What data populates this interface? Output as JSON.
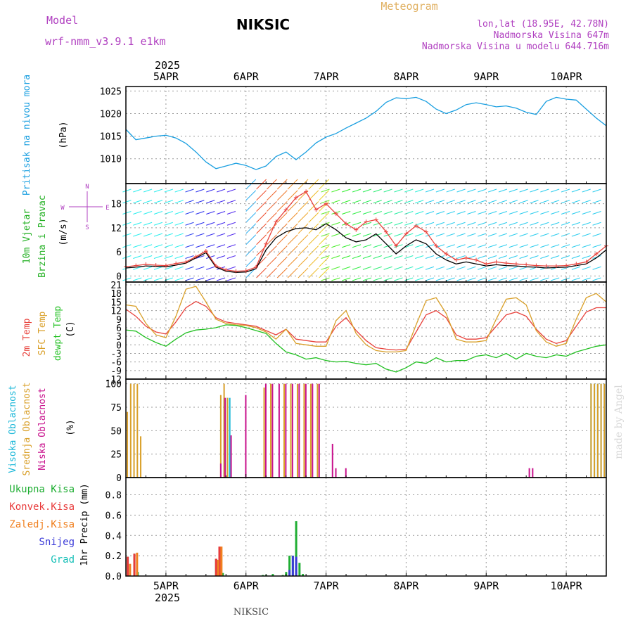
{
  "header": {
    "model_label": "Model",
    "model_name": "wrf-nmm_v3.9.1 e1km",
    "station": "NIKSIC",
    "title": "Meteogram",
    "lonlat": "lon,lat (18.95E, 42.78N)",
    "elevation": "Nadmorska Visina 647m",
    "model_elevation": "Nadmorska Visina u modelu 644.716m",
    "footer_station": "NIKSIC",
    "credit": "made by Angel",
    "year_top": "2025",
    "year_bottom": "2025"
  },
  "colors": {
    "pressure": "#1a9fe0",
    "t2m": "#e8423c",
    "sfc": "#d9a02a",
    "dewpt": "#22c022",
    "high_cloud": "#1ab7d8",
    "mid_cloud": "#d9a02a",
    "low_cloud": "#c8108c",
    "total_precip": "#1fae33",
    "conv_precip": "#e83b3b",
    "frz_precip": "#f08020",
    "snow": "#3a3ad8",
    "hail": "#18c0b8",
    "wind_label": "#22b022",
    "wind_compass": "#b040c0",
    "header_purple": "#b040c0",
    "header_gold": "#e0b060"
  },
  "chart_data": {
    "type": "line",
    "x_labels": [
      "5APR",
      "6APR",
      "7APR",
      "8APR",
      "9APR",
      "10APR"
    ],
    "time_range_hours": [
      0,
      144
    ],
    "panels": [
      {
        "id": "pressure",
        "ylabel": [
          "Pritisak na nivou mora",
          "(hPa)"
        ],
        "yticks": [
          1010,
          1015,
          1020,
          1025
        ],
        "ylim": [
          1004.5,
          1026
        ],
        "series": [
          {
            "name": "",
            "x": [
              0,
              3,
              6,
              9,
              12,
              15,
              18,
              21,
              24,
              27,
              30,
              33,
              36,
              39,
              42,
              45,
              48,
              51,
              54,
              57,
              60,
              63,
              66,
              69,
              72,
              75,
              78,
              81,
              84,
              87,
              90,
              93,
              96,
              99,
              102,
              105,
              108,
              111,
              114,
              117,
              120,
              123,
              126,
              129,
              132,
              135,
              138,
              141,
              144
            ],
            "values": [
              1016.5,
              1014.2,
              1014.6,
              1015.0,
              1015.2,
              1014.6,
              1013.4,
              1011.5,
              1009.3,
              1007.8,
              1008.4,
              1009.0,
              1008.5,
              1007.6,
              1008.4,
              1010.5,
              1011.5,
              1009.8,
              1011.5,
              1013.5,
              1014.8,
              1015.6,
              1016.8,
              1017.9,
              1019.0,
              1020.5,
              1022.5,
              1023.5,
              1023.3,
              1023.6,
              1022.7,
              1021.0,
              1020.0,
              1020.8,
              1022.0,
              1022.4,
              1022.0,
              1021.5,
              1021.7,
              1021.2,
              1020.3,
              1019.8,
              1022.7,
              1023.6,
              1023.2,
              1023.0,
              1021.0,
              1019.0,
              1017.3
            ]
          }
        ]
      },
      {
        "id": "wind",
        "ylabel": [
          "10m Vjetar",
          "Brzina i Pravac",
          "(m/s)"
        ],
        "compass": [
          "N",
          "E",
          "W",
          "S"
        ],
        "yticks": [
          0,
          6,
          12,
          18
        ],
        "ylim": [
          -1.5,
          23
        ],
        "series": [
          {
            "name": "",
            "x": [
              0,
              3,
              6,
              9,
              12,
              15,
              18,
              21,
              24,
              27,
              30,
              33,
              36,
              39,
              42,
              45,
              48,
              51,
              54,
              57,
              60,
              63,
              66,
              69,
              72,
              75,
              78,
              81,
              84,
              87,
              90,
              93,
              96,
              99,
              102,
              105,
              108,
              111,
              114,
              117,
              120,
              123,
              126,
              129,
              132,
              135,
              138,
              141,
              144
            ],
            "values": [
              2.0,
              2.2,
              2.5,
              2.4,
              2.3,
              2.7,
              3.2,
              4.5,
              5.8,
              2.2,
              1.2,
              0.9,
              1.0,
              1.8,
              6.5,
              9.5,
              11.0,
              11.8,
              12.0,
              11.5,
              13.0,
              11.5,
              9.5,
              8.5,
              9.0,
              10.5,
              8.0,
              5.5,
              7.5,
              9.0,
              8.0,
              5.5,
              4.0,
              3.0,
              3.5,
              3.0,
              2.5,
              2.8,
              2.6,
              2.5,
              2.3,
              2.2,
              2.0,
              2.1,
              2.2,
              2.6,
              3.0,
              4.5,
              6.5
            ]
          },
          {
            "name": "",
            "x": [
              0,
              3,
              6,
              9,
              12,
              15,
              18,
              21,
              24,
              27,
              30,
              33,
              36,
              39,
              42,
              45,
              48,
              51,
              54,
              57,
              60,
              63,
              66,
              69,
              72,
              75,
              78,
              81,
              84,
              87,
              90,
              93,
              96,
              99,
              102,
              105,
              108,
              111,
              114,
              117,
              120,
              123,
              126,
              129,
              132,
              135,
              138,
              141,
              144
            ],
            "values": [
              2.3,
              2.6,
              2.9,
              2.7,
              2.6,
              3.1,
              3.5,
              4.8,
              6.2,
              2.5,
              1.5,
              1.2,
              1.3,
              2.2,
              8.0,
              13.5,
              16.5,
              19.5,
              21.0,
              16.5,
              18.0,
              15.5,
              13.0,
              11.5,
              13.5,
              14.0,
              11.0,
              7.5,
              10.5,
              12.5,
              11.0,
              7.5,
              5.5,
              4.0,
              4.5,
              4.0,
              3.0,
              3.5,
              3.2,
              3.0,
              2.8,
              2.6,
              2.5,
              2.5,
              2.6,
              3.0,
              3.5,
              5.5,
              7.5
            ]
          }
        ]
      },
      {
        "id": "temperature",
        "ylabel": [
          "2m Temp",
          "SFC Temp",
          "dewpt Temp",
          "(C)"
        ],
        "yticks": [
          -12,
          -9,
          -6,
          -3,
          0,
          3,
          6,
          9,
          12,
          15,
          18,
          21
        ],
        "ylim": [
          -12,
          22
        ],
        "series": [
          {
            "name": "2m Temp",
            "x": [
              0,
              3,
              6,
              9,
              12,
              15,
              18,
              21,
              24,
              27,
              30,
              33,
              36,
              39,
              42,
              45,
              48,
              51,
              54,
              57,
              60,
              63,
              66,
              69,
              72,
              75,
              78,
              81,
              84,
              87,
              90,
              93,
              96,
              99,
              102,
              105,
              108,
              111,
              114,
              117,
              120,
              123,
              126,
              129,
              132,
              135,
              138,
              141,
              144
            ],
            "values": [
              12.5,
              10.0,
              6.5,
              4.5,
              3.8,
              8.0,
              13.0,
              15.2,
              13.5,
              9.5,
              8.0,
              7.5,
              7.0,
              6.5,
              5.0,
              3.5,
              5.5,
              2.0,
              1.5,
              1.0,
              1.0,
              6.5,
              9.5,
              5.0,
              1.5,
              -1.0,
              -1.5,
              -1.8,
              -1.5,
              4.5,
              10.5,
              12.0,
              9.5,
              3.5,
              2.0,
              2.0,
              2.5,
              6.5,
              10.5,
              11.5,
              10.0,
              5.5,
              2.0,
              0.5,
              1.5,
              6.5,
              11.5,
              13.0,
              13.0
            ]
          },
          {
            "name": "SFC Temp",
            "x": [
              0,
              3,
              6,
              9,
              12,
              15,
              18,
              21,
              24,
              27,
              30,
              33,
              36,
              39,
              42,
              45,
              48,
              51,
              54,
              57,
              60,
              63,
              66,
              69,
              72,
              75,
              78,
              81,
              84,
              87,
              90,
              93,
              96,
              99,
              102,
              105,
              108,
              111,
              114,
              117,
              120,
              123,
              126,
              129,
              132,
              135,
              138,
              141,
              144
            ],
            "values": [
              14.0,
              13.5,
              7.5,
              3.5,
              2.5,
              10.0,
              19.5,
              20.5,
              15.0,
              9.0,
              7.5,
              7.0,
              6.8,
              6.0,
              4.5,
              2.0,
              5.5,
              0.5,
              0.0,
              -0.5,
              -0.5,
              8.5,
              12.0,
              4.0,
              0.0,
              -2.0,
              -2.5,
              -2.5,
              -2.0,
              7.0,
              15.5,
              16.5,
              11.0,
              2.0,
              1.0,
              1.0,
              1.5,
              9.0,
              16.0,
              16.5,
              14.0,
              5.0,
              1.0,
              -0.5,
              0.5,
              9.0,
              16.5,
              18.0,
              15.0
            ]
          },
          {
            "name": "dewpt Temp",
            "x": [
              0,
              3,
              6,
              9,
              12,
              15,
              18,
              21,
              24,
              27,
              30,
              33,
              36,
              39,
              42,
              45,
              48,
              51,
              54,
              57,
              60,
              63,
              66,
              69,
              72,
              75,
              78,
              81,
              84,
              87,
              90,
              93,
              96,
              99,
              102,
              105,
              108,
              111,
              114,
              117,
              120,
              123,
              126,
              129,
              132,
              135,
              138,
              141,
              144
            ],
            "values": [
              5.2,
              4.8,
              2.5,
              0.8,
              -0.5,
              2.0,
              4.2,
              5.2,
              5.5,
              6.0,
              7.0,
              6.8,
              6.0,
              5.0,
              4.0,
              0.5,
              -2.5,
              -3.5,
              -5.0,
              -4.5,
              -5.5,
              -6.0,
              -5.8,
              -6.5,
              -7.0,
              -6.5,
              -8.5,
              -9.5,
              -8.0,
              -6.0,
              -6.5,
              -4.5,
              -6.0,
              -5.5,
              -5.5,
              -4.0,
              -3.5,
              -4.5,
              -3.0,
              -5.0,
              -3.0,
              -4.0,
              -4.5,
              -3.5,
              -4.0,
              -2.5,
              -1.5,
              -0.5,
              0.0
            ]
          }
        ]
      },
      {
        "id": "cloud",
        "type": "bar",
        "ylabel": [
          "Visoka Oblacnost",
          "Srednja Oblacnost",
          "Niska Oblacnost",
          "(%)"
        ],
        "yticks": [
          0,
          25,
          50,
          75,
          100
        ],
        "ylim": [
          0,
          105
        ],
        "series": [
          {
            "name": "Visoka Oblacnost",
            "x": [
              29.5,
              30.5,
              31.2,
              139.5,
              140.5,
              141.5,
              142.5,
              143.5
            ],
            "values": [
              85,
              85,
              85,
              100,
              100,
              100,
              100,
              100
            ]
          },
          {
            "name": "Srednja Oblacnost",
            "x": [
              0.5,
              1.5,
              2.5,
              3.5,
              4.5,
              28.5,
              29.5,
              30.5,
              41.5,
              43.5,
              47.5,
              49.5,
              51.5,
              53.5,
              55.5,
              57.5,
              139.5,
              140.5,
              141.5,
              142.5,
              143.5
            ],
            "values": [
              70,
              100,
              100,
              100,
              44,
              88,
              100,
              85,
              96,
              100,
              100,
              100,
              100,
              100,
              100,
              100,
              100,
              100,
              100,
              100,
              100
            ]
          },
          {
            "name": "Niska Oblacnost",
            "x": [
              28.5,
              29.8,
              31.6,
              36,
              42,
              44,
              46,
              48,
              50,
              52,
              54,
              56,
              58,
              62,
              63,
              66,
              121,
              122
            ],
            "values": [
              15,
              85,
              45,
              88,
              100,
              100,
              100,
              100,
              100,
              100,
              100,
              100,
              100,
              36,
              10,
              10,
              10,
              10
            ]
          }
        ]
      },
      {
        "id": "precip",
        "type": "bar",
        "ylabel": [
          "1hr Precip (mm)"
        ],
        "yticks": [
          0.0,
          0.2,
          0.4,
          0.6,
          0.8
        ],
        "ylim": [
          0,
          0.97
        ],
        "series": [
          {
            "name": "Ukupna Kisa",
            "x": [
              0.5,
              2.5,
              3.5,
              26,
              27,
              28,
              29,
              30.5,
              39,
              40,
              41,
              42,
              43,
              44,
              45,
              46,
              47,
              48,
              49,
              50,
              51,
              52,
              53
            ],
            "values": [
              0.19,
              0.22,
              0.04,
              0.0,
              0.17,
              0.28,
              0.03,
              0.0,
              0.0,
              0.0,
              0.01,
              0.01,
              0.0,
              0.02,
              0.0,
              0.0,
              0.01,
              0.04,
              0.2,
              0.2,
              0.54,
              0.13,
              0.02
            ]
          },
          {
            "name": "Konvek.Kisa",
            "x": [
              0.5,
              2.5,
              27,
              28
            ],
            "values": [
              0.19,
              0.22,
              0.17,
              0.29
            ]
          },
          {
            "name": "Zaledj.Kisa",
            "x": [
              1.2,
              3.3,
              27.6,
              28.6
            ],
            "values": [
              0.12,
              0.23,
              0.16,
              0.29
            ]
          },
          {
            "name": "Snijeg",
            "x": [
              49,
              50,
              51
            ],
            "values": [
              0.06,
              0.2,
              0.19
            ]
          },
          {
            "name": "Grad",
            "x": [],
            "values": []
          }
        ],
        "legend": [
          "Ukupna Kisa",
          "Konvek.Kisa",
          "Zaledj.Kisa",
          "Snijeg",
          "Grad"
        ]
      }
    ],
    "grid": true
  }
}
